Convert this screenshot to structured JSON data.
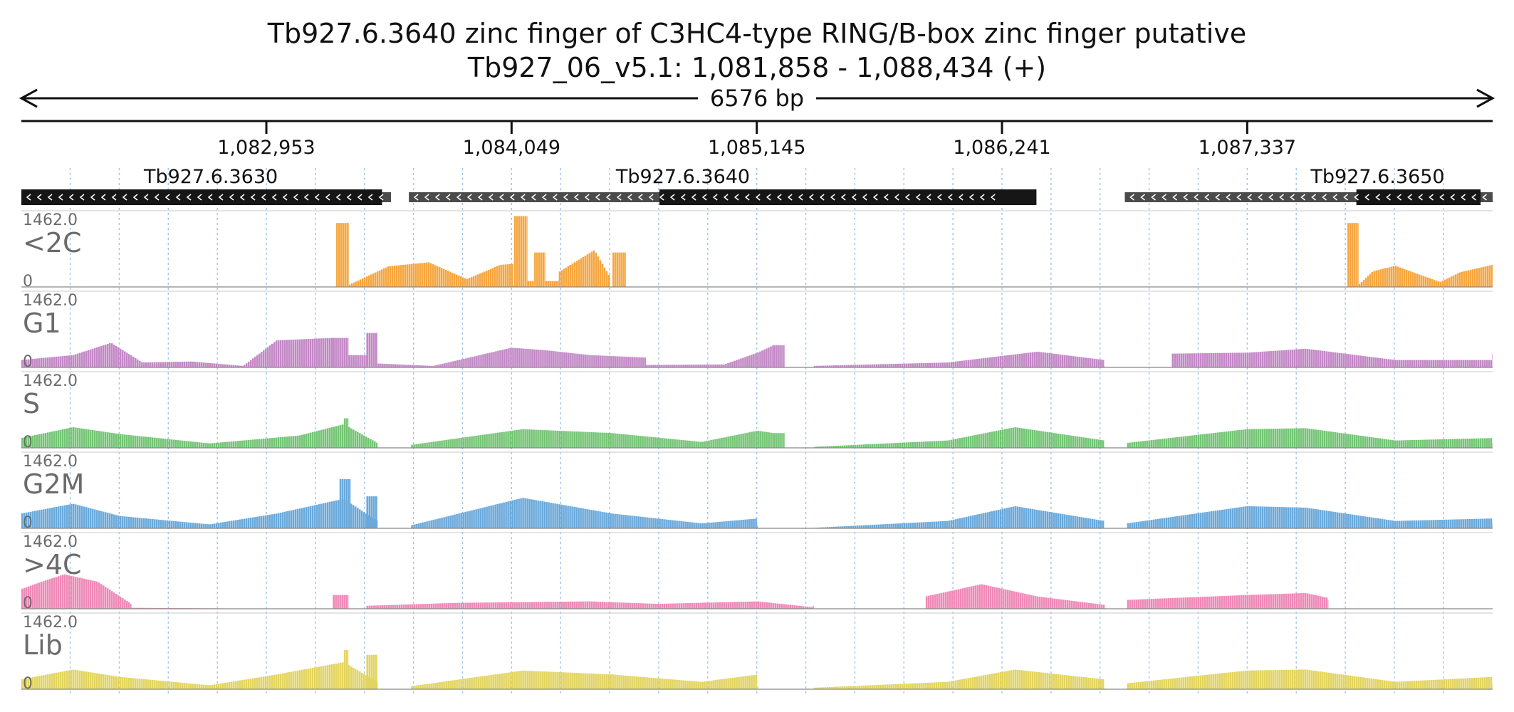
{
  "chart_data": {
    "type": "area",
    "title": "Tb927.6.3640  zinc finger of C3HC4-type  RING/B-box zinc finger  putative",
    "subtitle": "Tb927_06_v5.1: 1,081,858 - 1,088,434 (+)",
    "span_label": "6576 bp",
    "region": {
      "start": 1081858,
      "end": 1088434
    },
    "ticks": [
      {
        "pos": 1082953,
        "label": "1,082,953"
      },
      {
        "pos": 1084049,
        "label": "1,084,049"
      },
      {
        "pos": 1085145,
        "label": "1,085,145"
      },
      {
        "pos": 1086241,
        "label": "1,086,241"
      },
      {
        "pos": 1087337,
        "label": "1,087,337"
      }
    ],
    "genes": [
      {
        "name": "Tb927.6.3630",
        "label_pos": 1082705,
        "strand": "-",
        "utr": [
          1081858,
          1083510
        ],
        "cds": [
          1081858,
          1083470
        ]
      },
      {
        "name": "Tb927.6.3640",
        "label_pos": 1084815,
        "strand": "-",
        "utr": [
          1083590,
          1086230
        ],
        "cds": [
          1084710,
          1086395
        ]
      },
      {
        "name": "Tb927.6.3650",
        "label_pos": 1087920,
        "strand": "-",
        "utr": [
          1086790,
          1088434
        ],
        "cds": [
          1087825,
          1088380
        ]
      }
    ],
    "ymax": 1462,
    "tracks": [
      {
        "name": "<2C",
        "scale_max": "1462.0",
        "scale_min": "0",
        "color": "#f6a63f",
        "segments": [
          {
            "x": [
              1083265,
              1083322
            ],
            "y": [
              1300,
              1300
            ]
          },
          {
            "x": [
              1083322,
              1083500,
              1083680,
              1083850,
              1084000,
              1084060
            ],
            "y": [
              40,
              420,
              500,
              160,
              450,
              470
            ]
          },
          {
            "x": [
              1084060,
              1084120
            ],
            "y": [
              1440,
              1440
            ]
          },
          {
            "x": [
              1084120,
              1084150
            ],
            "y": [
              120,
              120
            ]
          },
          {
            "x": [
              1084150,
              1084200
            ],
            "y": [
              700,
              700
            ]
          },
          {
            "x": [
              1084200,
              1084260
            ],
            "y": [
              120,
              120
            ]
          },
          {
            "x": [
              1084260,
              1084420,
              1084490
            ],
            "y": [
              300,
              750,
              200
            ]
          },
          {
            "x": [
              1084490,
              1084500
            ],
            "y": [
              0,
              0
            ]
          },
          {
            "x": [
              1084500,
              1084560
            ],
            "y": [
              700,
              700
            ]
          },
          {
            "x": [
              1087785,
              1087835
            ],
            "y": [
              1300,
              1300
            ]
          },
          {
            "x": [
              1087835,
              1087900,
              1088000,
              1088200,
              1088290,
              1088434
            ],
            "y": [
              40,
              320,
              430,
              100,
              300,
              450
            ]
          }
        ]
      },
      {
        "name": "G1",
        "scale_max": "1462.0",
        "scale_min": "0",
        "color": "#c388c6",
        "segments": [
          {
            "x": [
              1081858,
              1082090,
              1082260,
              1082400,
              1082620,
              1082850,
              1083000,
              1083250
            ],
            "y": [
              150,
              250,
              500,
              100,
              120,
              30,
              550,
              600
            ]
          },
          {
            "x": [
              1083250,
              1083320
            ],
            "y": [
              600,
              600
            ]
          },
          {
            "x": [
              1083320,
              1083400
            ],
            "y": [
              250,
              250
            ]
          },
          {
            "x": [
              1083400,
              1083450
            ],
            "y": [
              700,
              700
            ]
          },
          {
            "x": [
              1083450,
              1083700,
              1084049,
              1084200,
              1084400,
              1084650
            ],
            "y": [
              80,
              30,
              400,
              350,
              250,
              200
            ]
          },
          {
            "x": [
              1084650,
              1085000,
              1085150,
              1085220
            ],
            "y": [
              50,
              60,
              300,
              450
            ]
          },
          {
            "x": [
              1085220,
              1085270
            ],
            "y": [
              450,
              450
            ]
          },
          {
            "x": [
              1085400,
              1086000,
              1086400,
              1086700
            ],
            "y": [
              30,
              100,
              320,
              150
            ]
          },
          {
            "x": [
              1087000,
              1087340,
              1087600,
              1088000,
              1088434
            ],
            "y": [
              280,
              300,
              380,
              150,
              150
            ]
          }
        ]
      },
      {
        "name": "S",
        "scale_max": "1462.0",
        "scale_min": "0",
        "color": "#74c575",
        "segments": [
          {
            "x": [
              1081858,
              1082090,
              1082300,
              1082700,
              1083100,
              1083300,
              1083450
            ],
            "y": [
              200,
              420,
              280,
              90,
              250,
              480,
              100
            ]
          },
          {
            "x": [
              1083300,
              1083320
            ],
            "y": [
              600,
              600
            ]
          },
          {
            "x": [
              1083600,
              1084100,
              1084500,
              1084900,
              1085150,
              1085220
            ],
            "y": [
              60,
              380,
              300,
              120,
              350,
              300
            ]
          },
          {
            "x": [
              1085220,
              1085270
            ],
            "y": [
              300,
              300
            ]
          },
          {
            "x": [
              1085400,
              1086000,
              1086300,
              1086700
            ],
            "y": [
              20,
              150,
              420,
              150
            ]
          },
          {
            "x": [
              1086800,
              1087337,
              1087600,
              1088000,
              1088434
            ],
            "y": [
              100,
              380,
              400,
              150,
              200
            ]
          }
        ]
      },
      {
        "name": "G2M",
        "scale_max": "1462.0",
        "scale_min": "0",
        "color": "#6aa9db",
        "segments": [
          {
            "x": [
              1081858,
              1082090,
              1082300,
              1082700,
              1083000,
              1083300,
              1083450
            ],
            "y": [
              300,
              500,
              250,
              80,
              300,
              600,
              150
            ]
          },
          {
            "x": [
              1083280,
              1083330
            ],
            "y": [
              1000,
              1000
            ]
          },
          {
            "x": [
              1083400,
              1083450
            ],
            "y": [
              650,
              650
            ]
          },
          {
            "x": [
              1083600,
              1084100,
              1084500,
              1084900,
              1085150
            ],
            "y": [
              60,
              620,
              300,
              100,
              200
            ]
          },
          {
            "x": [
              1085400,
              1086000,
              1086300,
              1086700
            ],
            "y": [
              10,
              150,
              450,
              150
            ]
          },
          {
            "x": [
              1086800,
              1087337,
              1087600,
              1088000,
              1088434
            ],
            "y": [
              100,
              450,
              420,
              150,
              200
            ]
          }
        ]
      },
      {
        "name": ">4C",
        "scale_max": "1462.0",
        "scale_min": "0",
        "color": "#ef89b7",
        "segments": [
          {
            "x": [
              1081858,
              1081950,
              1082050,
              1082200,
              1082350
            ],
            "y": [
              400,
              550,
              700,
              550,
              100
            ]
          },
          {
            "x": [
              1082350,
              1082700,
              1083000
            ],
            "y": [
              20,
              10,
              0
            ]
          },
          {
            "x": [
              1083250,
              1083320
            ],
            "y": [
              280,
              280
            ]
          },
          {
            "x": [
              1083400,
              1083800,
              1084400,
              1084700,
              1085150,
              1085400
            ],
            "y": [
              60,
              120,
              150,
              100,
              150,
              30
            ]
          },
          {
            "x": [
              1085900,
              1086150,
              1086400,
              1086700
            ],
            "y": [
              250,
              500,
              250,
              80
            ]
          },
          {
            "x": [
              1086800,
              1087337,
              1087600,
              1087700
            ],
            "y": [
              180,
              280,
              320,
              220
            ]
          }
        ]
      },
      {
        "name": "Lib",
        "scale_max": "1462.0",
        "scale_min": "0",
        "color": "#e2d460",
        "segments": [
          {
            "x": [
              1081858,
              1082090,
              1082300,
              1082700,
              1083000,
              1083300,
              1083450
            ],
            "y": [
              200,
              400,
              250,
              80,
              300,
              550,
              150
            ]
          },
          {
            "x": [
              1083300,
              1083320
            ],
            "y": [
              800,
              800
            ]
          },
          {
            "x": [
              1083400,
              1083450
            ],
            "y": [
              700,
              700
            ]
          },
          {
            "x": [
              1083600,
              1084100,
              1084500,
              1084900,
              1085150
            ],
            "y": [
              60,
              380,
              300,
              150,
              300
            ]
          },
          {
            "x": [
              1085400,
              1086000,
              1086300,
              1086700
            ],
            "y": [
              30,
              150,
              400,
              200
            ]
          },
          {
            "x": [
              1086800,
              1087337,
              1087600,
              1088000,
              1088434
            ],
            "y": [
              120,
              380,
              400,
              150,
              250
            ]
          }
        ]
      }
    ]
  }
}
